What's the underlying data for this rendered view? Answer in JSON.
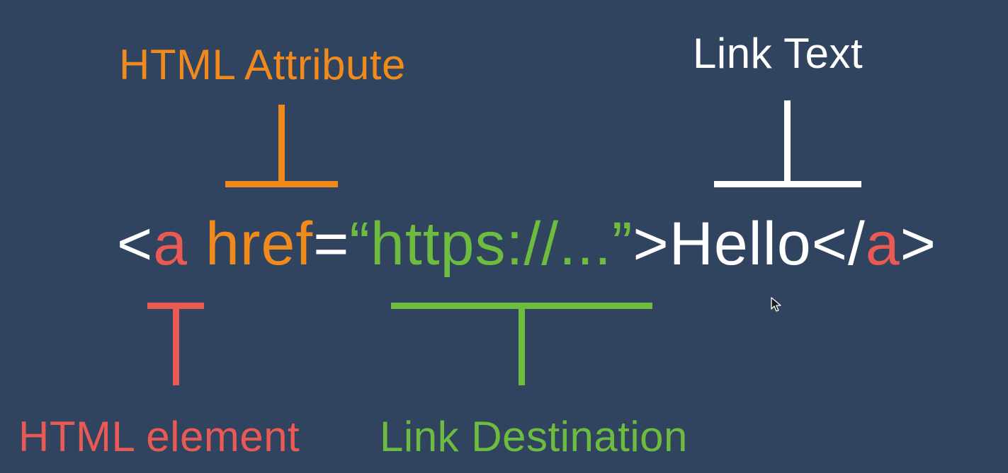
{
  "colors": {
    "background": "#304460",
    "attribute": "#f18a1c",
    "element": "#ea5a55",
    "destination": "#6dbb3f",
    "text": "#ffffff"
  },
  "labels": {
    "html_attribute": "HTML Attribute",
    "link_text": "Link Text",
    "html_element": "HTML element",
    "link_destination": "Link Destination"
  },
  "code": {
    "open_lt": "<",
    "tag_open": "a",
    "space": " ",
    "attr": "href",
    "equals": "=",
    "url": "“https://...”",
    "open_gt": ">",
    "link_text": "Hello",
    "close_lt": "</",
    "tag_close": "a",
    "close_gt": ">"
  },
  "icons": {
    "cursor": "mouse-pointer-icon"
  }
}
